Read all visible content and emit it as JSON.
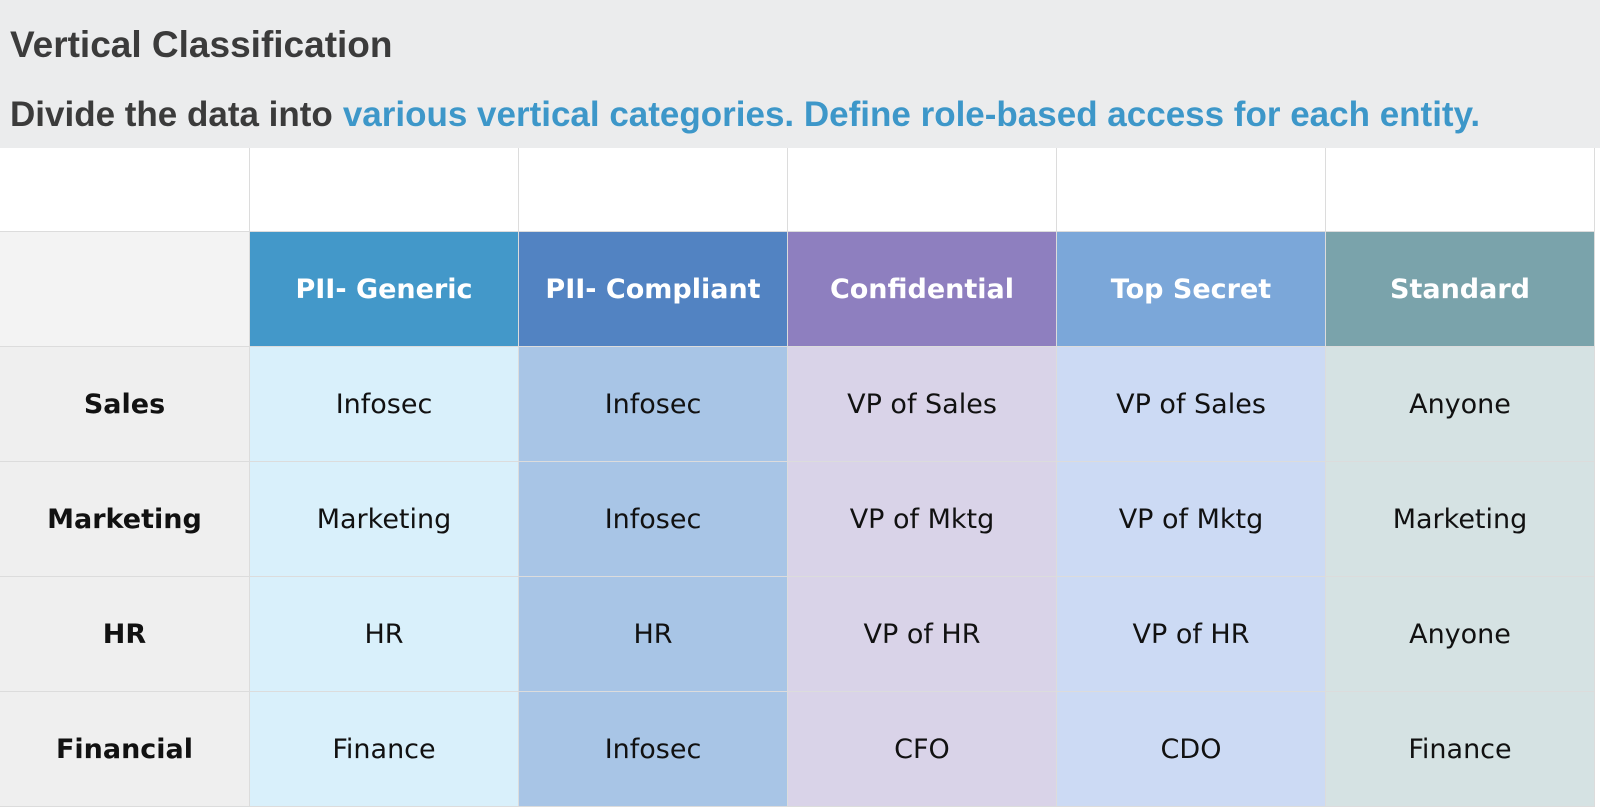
{
  "header": {
    "title": "Vertical Classification",
    "subtitle": {
      "lead": "Divide the data into",
      "highlight": "various vertical categories. Define role-based access for each entity."
    }
  },
  "table": {
    "columns": [
      "PII- Generic",
      "PII- Compliant",
      "Confidential",
      "Top Secret",
      "Standard"
    ],
    "rows": [
      {
        "label": "Sales",
        "cells": [
          "Infosec",
          "Infosec",
          "VP of Sales",
          "VP of Sales",
          "Anyone"
        ]
      },
      {
        "label": "Marketing",
        "cells": [
          "Marketing",
          "Infosec",
          "VP of Mktg",
          "VP of Mktg",
          "Marketing"
        ]
      },
      {
        "label": "HR",
        "cells": [
          "HR",
          "HR",
          "VP of HR",
          "VP of HR",
          "Anyone"
        ]
      },
      {
        "label": "Financial",
        "cells": [
          "Finance",
          "Infosec",
          "CFO",
          "CDO",
          "Finance"
        ]
      }
    ]
  }
}
